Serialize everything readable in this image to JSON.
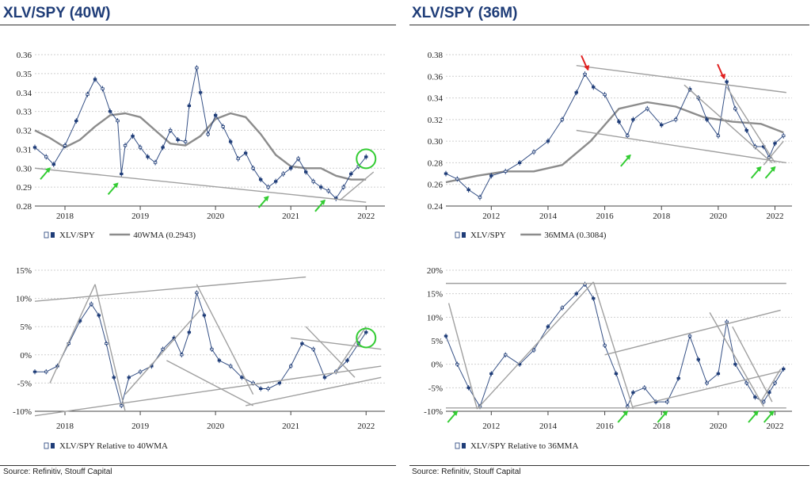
{
  "titles": {
    "left": "XLV/SPY (40W)",
    "right": "XLV/SPY (36M)"
  },
  "source": {
    "left": "Source: Refinitiv, Stouff Capital",
    "right": "Source: Refinitiv, Stouff Capital"
  },
  "colors": {
    "candle": "#1f3d78",
    "ma": "#8c8c8c",
    "trend": "#a0a0a0",
    "grid": "#cfcfcf",
    "green_arrow": "#33cc33",
    "red_arrow": "#e02020",
    "circle": "#33cc33"
  },
  "chart_data": [
    {
      "id": "tl",
      "type": "line",
      "panel": "top-left",
      "y_ticks": [
        "0.36",
        "0.35",
        "0.34",
        "0.33",
        "0.32",
        "0.31",
        "0.30",
        "0.29",
        "0.28"
      ],
      "ylim": [
        0.28,
        0.36
      ],
      "x_ticks": [
        "2018",
        "2019",
        "2020",
        "2021",
        "2022"
      ],
      "xlim": [
        2017.6,
        2022.25
      ],
      "legend": [
        "XLV/SPY",
        "40WMA (0.2943)"
      ],
      "series": [
        {
          "name": "XLV/SPY",
          "style": "candles",
          "x": [
            2017.6,
            2017.75,
            2017.85,
            2018.0,
            2018.15,
            2018.3,
            2018.4,
            2018.5,
            2018.6,
            2018.7,
            2018.75,
            2018.8,
            2018.9,
            2019.0,
            2019.1,
            2019.2,
            2019.3,
            2019.4,
            2019.5,
            2019.6,
            2019.65,
            2019.75,
            2019.8,
            2019.9,
            2020.0,
            2020.1,
            2020.2,
            2020.3,
            2020.4,
            2020.5,
            2020.6,
            2020.7,
            2020.8,
            2020.9,
            2021.0,
            2021.1,
            2021.2,
            2021.3,
            2021.4,
            2021.5,
            2021.6,
            2021.7,
            2021.8,
            2021.9,
            2022.0
          ],
          "y": [
            0.311,
            0.306,
            0.302,
            0.312,
            0.325,
            0.339,
            0.347,
            0.342,
            0.33,
            0.325,
            0.297,
            0.312,
            0.317,
            0.311,
            0.306,
            0.303,
            0.311,
            0.32,
            0.315,
            0.314,
            0.333,
            0.353,
            0.34,
            0.318,
            0.328,
            0.322,
            0.314,
            0.305,
            0.308,
            0.3,
            0.294,
            0.29,
            0.293,
            0.297,
            0.3,
            0.305,
            0.298,
            0.293,
            0.29,
            0.288,
            0.284,
            0.29,
            0.297,
            0.301,
            0.306
          ]
        },
        {
          "name": "40WMA (0.2943)",
          "style": "ma",
          "x": [
            2017.6,
            2017.8,
            2018.0,
            2018.2,
            2018.4,
            2018.6,
            2018.8,
            2019.0,
            2019.2,
            2019.4,
            2019.6,
            2019.8,
            2020.0,
            2020.2,
            2020.4,
            2020.6,
            2020.8,
            2021.0,
            2021.2,
            2021.4,
            2021.6,
            2021.8,
            2022.0
          ],
          "y": [
            0.32,
            0.316,
            0.311,
            0.315,
            0.322,
            0.328,
            0.329,
            0.327,
            0.32,
            0.313,
            0.312,
            0.317,
            0.326,
            0.329,
            0.327,
            0.318,
            0.307,
            0.301,
            0.3,
            0.3,
            0.296,
            0.294,
            0.294
          ]
        }
      ],
      "trendlines": [
        [
          [
            2017.6,
            0.3
          ],
          [
            2022.0,
            0.282
          ]
        ],
        [
          [
            2021.65,
            0.283
          ],
          [
            2022.1,
            0.298
          ]
        ]
      ],
      "annotations": [
        {
          "type": "green_arrow",
          "x": 2017.8,
          "y": 0.3
        },
        {
          "type": "green_arrow",
          "x": 2018.7,
          "y": 0.292
        },
        {
          "type": "green_arrow",
          "x": 2020.7,
          "y": 0.285
        },
        {
          "type": "green_arrow",
          "x": 2021.45,
          "y": 0.283
        },
        {
          "type": "circle",
          "x": 2022.0,
          "y": 0.305
        }
      ]
    },
    {
      "id": "tr",
      "type": "line",
      "panel": "top-right",
      "y_ticks": [
        "0.38",
        "0.36",
        "0.34",
        "0.32",
        "0.30",
        "0.28",
        "0.26",
        "0.24"
      ],
      "ylim": [
        0.24,
        0.38
      ],
      "x_ticks": [
        "2012",
        "2014",
        "2016",
        "2018",
        "2020",
        "2022"
      ],
      "xlim": [
        2010.4,
        2022.6
      ],
      "legend": [
        "XLV/SPY",
        "36MMA (0.3084)"
      ],
      "series": [
        {
          "name": "XLV/SPY",
          "style": "candles",
          "x": [
            2010.4,
            2010.8,
            2011.2,
            2011.6,
            2012.0,
            2012.5,
            2013.0,
            2013.5,
            2014.0,
            2014.5,
            2015.0,
            2015.3,
            2015.6,
            2016.0,
            2016.5,
            2016.8,
            2017.0,
            2017.5,
            2018.0,
            2018.5,
            2019.0,
            2019.3,
            2019.6,
            2020.0,
            2020.3,
            2020.6,
            2021.0,
            2021.3,
            2021.6,
            2021.8,
            2022.0,
            2022.3
          ],
          "y": [
            0.27,
            0.265,
            0.255,
            0.248,
            0.268,
            0.272,
            0.28,
            0.29,
            0.3,
            0.32,
            0.345,
            0.362,
            0.35,
            0.343,
            0.318,
            0.305,
            0.32,
            0.33,
            0.315,
            0.32,
            0.348,
            0.34,
            0.32,
            0.305,
            0.355,
            0.33,
            0.31,
            0.295,
            0.295,
            0.285,
            0.298,
            0.305
          ]
        },
        {
          "name": "36MMA (0.3084)",
          "style": "ma",
          "x": [
            2010.4,
            2011.5,
            2012.5,
            2013.5,
            2014.5,
            2015.5,
            2016.5,
            2017.5,
            2018.5,
            2019.5,
            2020.5,
            2021.5,
            2022.3
          ],
          "y": [
            0.262,
            0.268,
            0.272,
            0.272,
            0.278,
            0.3,
            0.33,
            0.336,
            0.332,
            0.322,
            0.318,
            0.316,
            0.308
          ]
        }
      ],
      "trendlines": [
        [
          [
            2015.0,
            0.37
          ],
          [
            2022.4,
            0.345
          ]
        ],
        [
          [
            2015.0,
            0.31
          ],
          [
            2022.4,
            0.28
          ]
        ],
        [
          [
            2018.8,
            0.352
          ],
          [
            2021.9,
            0.28
          ]
        ],
        [
          [
            2020.3,
            0.35
          ],
          [
            2022.0,
            0.28
          ]
        ],
        [
          [
            2021.6,
            0.278
          ],
          [
            2022.3,
            0.3
          ]
        ]
      ],
      "annotations": [
        {
          "type": "red_arrow",
          "x": 2015.4,
          "y": 0.366
        },
        {
          "type": "red_arrow",
          "x": 2020.2,
          "y": 0.358
        },
        {
          "type": "green_arrow",
          "x": 2016.9,
          "y": 0.287
        },
        {
          "type": "green_arrow",
          "x": 2021.5,
          "y": 0.276
        },
        {
          "type": "green_arrow",
          "x": 2022.0,
          "y": 0.276
        }
      ]
    },
    {
      "id": "bl",
      "type": "line",
      "panel": "bottom-left",
      "y_ticks": [
        "15%",
        "10%",
        "5%",
        "0%",
        "-5%",
        "-10%"
      ],
      "ylim": [
        -10,
        15
      ],
      "x_ticks": [
        "2018",
        "2019",
        "2020",
        "2021",
        "2022"
      ],
      "xlim": [
        2017.6,
        2022.25
      ],
      "legend": [
        "XLV/SPY Relative to 40WMA"
      ],
      "series": [
        {
          "name": "XLV/SPY Relative to 40WMA",
          "style": "candles",
          "x": [
            2017.6,
            2017.75,
            2017.9,
            2018.05,
            2018.2,
            2018.35,
            2018.45,
            2018.55,
            2018.65,
            2018.75,
            2018.85,
            2019.0,
            2019.15,
            2019.3,
            2019.45,
            2019.55,
            2019.65,
            2019.75,
            2019.85,
            2019.95,
            2020.05,
            2020.2,
            2020.35,
            2020.5,
            2020.6,
            2020.7,
            2020.85,
            2021.0,
            2021.15,
            2021.3,
            2021.45,
            2021.6,
            2021.75,
            2021.9,
            2022.0
          ],
          "y": [
            -3,
            -3,
            -2,
            2,
            6,
            9,
            7,
            2,
            -4,
            -9,
            -4,
            -3,
            -2,
            1,
            3,
            0,
            4,
            11,
            7,
            1,
            -1,
            -2,
            -4,
            -5,
            -6,
            -6,
            -5,
            -2,
            2,
            1,
            -4,
            -3,
            -1,
            2,
            4
          ]
        }
      ],
      "trendlines": [
        [
          [
            2017.6,
            9.5
          ],
          [
            2021.2,
            13.8
          ]
        ],
        [
          [
            2017.6,
            -10.8
          ],
          [
            2022.2,
            -2
          ]
        ],
        [
          [
            2017.8,
            -5
          ],
          [
            2018.4,
            12.5
          ]
        ],
        [
          [
            2018.4,
            12.5
          ],
          [
            2018.8,
            -10
          ]
        ],
        [
          [
            2018.8,
            -7
          ],
          [
            2019.8,
            8
          ]
        ],
        [
          [
            2019.75,
            12.5
          ],
          [
            2020.5,
            -7
          ]
        ],
        [
          [
            2019.35,
            -1
          ],
          [
            2020.5,
            -9
          ]
        ],
        [
          [
            2020.4,
            -9
          ],
          [
            2022.2,
            -4
          ]
        ],
        [
          [
            2021.0,
            3
          ],
          [
            2022.2,
            1
          ]
        ],
        [
          [
            2021.2,
            5
          ],
          [
            2021.85,
            -4
          ]
        ],
        [
          [
            2021.6,
            -3
          ],
          [
            2022.0,
            5
          ]
        ]
      ],
      "annotations": [
        {
          "type": "circle",
          "x": 2022.0,
          "y": 3
        }
      ]
    },
    {
      "id": "br",
      "type": "line",
      "panel": "bottom-right",
      "y_ticks": [
        "20%",
        "15%",
        "10%",
        "5%",
        "0%",
        "-5%",
        "-10%"
      ],
      "ylim": [
        -10,
        20
      ],
      "x_ticks": [
        "2012",
        "2014",
        "2016",
        "2018",
        "2020",
        "2022"
      ],
      "xlim": [
        2010.4,
        2022.6
      ],
      "legend": [
        "XLV/SPY Relative to 36MMA"
      ],
      "series": [
        {
          "name": "XLV/SPY Relative to 36MMA",
          "style": "candles",
          "x": [
            2010.4,
            2010.8,
            2011.2,
            2011.6,
            2012.0,
            2012.5,
            2013.0,
            2013.5,
            2014.0,
            2014.5,
            2015.0,
            2015.3,
            2015.6,
            2016.0,
            2016.4,
            2016.8,
            2017.0,
            2017.4,
            2017.8,
            2018.2,
            2018.6,
            2019.0,
            2019.3,
            2019.6,
            2020.0,
            2020.3,
            2020.6,
            2021.0,
            2021.3,
            2021.6,
            2021.8,
            2022.0,
            2022.3
          ],
          "y": [
            6,
            0,
            -5,
            -9,
            -2,
            2,
            0,
            3,
            8,
            12,
            15,
            17,
            14,
            4,
            -2,
            -9,
            -6,
            -5,
            -8,
            -8,
            -3,
            6,
            1,
            -4,
            -2,
            9,
            0,
            -4,
            -7,
            -8,
            -6,
            -4,
            -1
          ]
        }
      ],
      "trendlines": [
        [
          [
            2010.4,
            17.2
          ],
          [
            2022.4,
            17.2
          ]
        ],
        [
          [
            2010.4,
            -9.3
          ],
          [
            2022.4,
            -9.3
          ]
        ],
        [
          [
            2010.5,
            13
          ],
          [
            2011.5,
            -9.5
          ]
        ],
        [
          [
            2011.5,
            -9.5
          ],
          [
            2015.6,
            17.5
          ]
        ],
        [
          [
            2015.6,
            17.5
          ],
          [
            2017.0,
            -9.5
          ]
        ],
        [
          [
            2016.0,
            2
          ],
          [
            2022.2,
            11.5
          ]
        ],
        [
          [
            2017.0,
            -9
          ],
          [
            2022.2,
            -1.5
          ]
        ],
        [
          [
            2019.7,
            11
          ],
          [
            2021.6,
            -9
          ]
        ],
        [
          [
            2020.5,
            8
          ],
          [
            2021.9,
            -8
          ]
        ],
        [
          [
            2021.5,
            -8
          ],
          [
            2022.2,
            -1
          ]
        ]
      ],
      "annotations": [
        {
          "type": "green_arrow",
          "x": 2010.8,
          "y": -10
        },
        {
          "type": "green_arrow",
          "x": 2016.8,
          "y": -10
        },
        {
          "type": "green_arrow",
          "x": 2018.2,
          "y": -10
        },
        {
          "type": "green_arrow",
          "x": 2021.4,
          "y": -10
        },
        {
          "type": "green_arrow",
          "x": 2021.95,
          "y": -10
        }
      ]
    }
  ]
}
